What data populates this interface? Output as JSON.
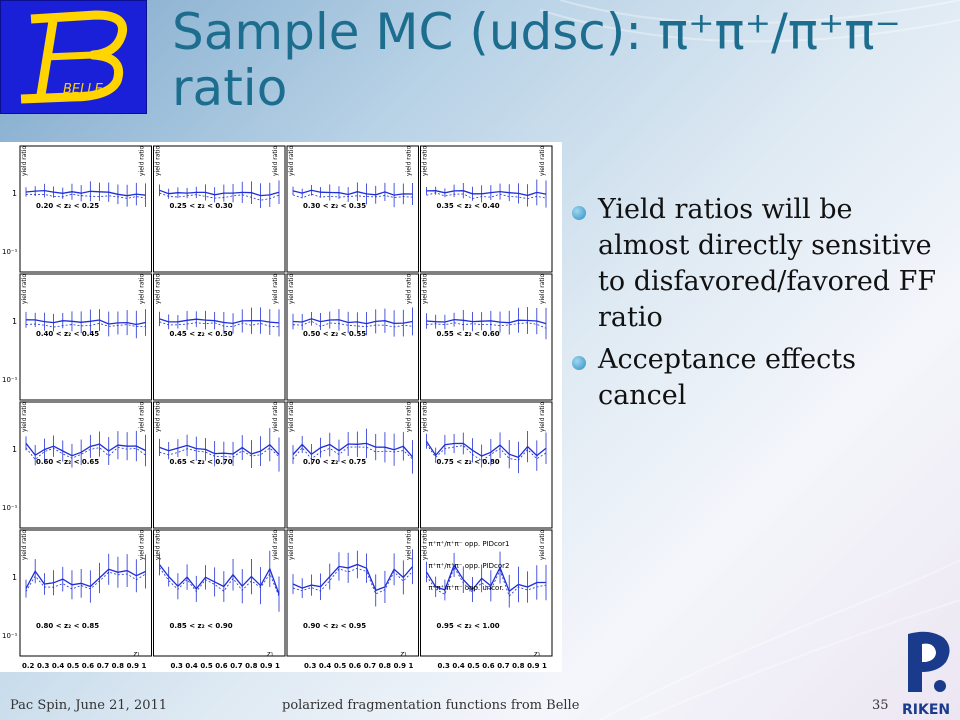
{
  "slide": {
    "title_line1": "Sample MC (udsc): π⁺π⁺/π⁺π⁻",
    "title_line2": "ratio",
    "bullets": [
      "Yield ratios will be almost directly sensitive to disfavored/favored FF ratio",
      "Acceptance effects cancel"
    ]
  },
  "logo": {
    "text": "BELLE",
    "letter": "B"
  },
  "footer": {
    "left": "Pac Spin, June 21, 2011",
    "center": "polarized fragmentation functions from Belle",
    "page": "35"
  },
  "riken_logo": {
    "text": "RIKEN"
  },
  "figure": {
    "ylabel": "yield ratio",
    "xlabel": "z₁",
    "y_ticks": [
      "1",
      "10⁻¹"
    ],
    "x_ticks": [
      "0.2",
      "0.3",
      "0.4",
      "0.5",
      "0.6",
      "0.7",
      "0.8",
      "0.9",
      "1"
    ],
    "panels": [
      "0.20 < z₂ < 0.25",
      "0.25 < z₂ < 0.30",
      "0.30 < z₂ < 0.35",
      "0.35 < z₂ < 0.40",
      "0.40 < z₂ < 0.45",
      "0.45 < z₂ < 0.50",
      "0.50 < z₂ < 0.55",
      "0.55 < z₂ < 0.60",
      "0.60 < z₂ < 0.65",
      "0.65 < z₂ < 0.70",
      "0.70 < z₂ < 0.75",
      "0.75 < z₂ < 0.80",
      "0.80 < z₂ < 0.85",
      "0.85 < z₂ < 0.90",
      "0.90 < z₂ < 0.95",
      "0.95 < z₂ < 1.00"
    ],
    "legend": [
      "π⁺π⁺/π⁺π⁻ opp. PIDcor1",
      "π⁺π⁺/π⁺π⁻ opp. PIDcor2",
      "π⁺π⁺/π⁺π⁻ opp. uncor."
    ],
    "colors": {
      "series": "#1f2fd6",
      "frame": "#000000"
    }
  }
}
